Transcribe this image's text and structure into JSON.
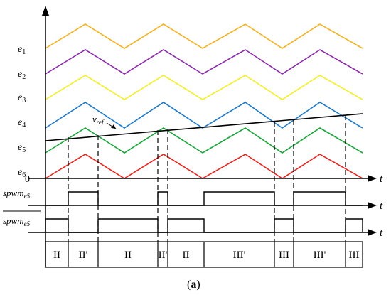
{
  "carrier_labels": [
    {
      "base": "e",
      "sub": "1"
    },
    {
      "base": "e",
      "sub": "2"
    },
    {
      "base": "e",
      "sub": "3"
    },
    {
      "base": "e",
      "sub": "4"
    },
    {
      "base": "e",
      "sub": "5"
    },
    {
      "base": "e",
      "sub": "6"
    }
  ],
  "carrier_colors": [
    "#f2b01e",
    "#8a2aa8",
    "#f2ee22",
    "#1f78c8",
    "#1aa33a",
    "#e8231e"
  ],
  "zero_label": "0",
  "t_label": "t",
  "vref_label": {
    "base": "v",
    "sub": "ref"
  },
  "spwm_label": {
    "base": "spwm",
    "sub": "e5"
  },
  "spwm_bar_label": {
    "base": "spwm",
    "sub": "e5"
  },
  "regions": [
    "II",
    "II'",
    "II",
    "II'",
    "II",
    "III'",
    "III",
    "III'",
    "III"
  ],
  "caption": {
    "open": "(",
    "letter": "a",
    "close": ")"
  }
}
